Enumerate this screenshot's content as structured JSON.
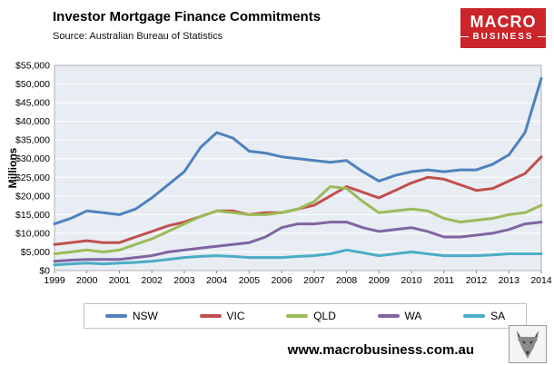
{
  "header": {
    "title": "Investor Mortgage Finance Commitments",
    "source": "Source: Australian Bureau of Statistics",
    "logo": {
      "line1": "MACRO",
      "line2": "BUSINESS",
      "bg_color": "#cb2429"
    }
  },
  "footer": {
    "url": "www.macrobusiness.com.au"
  },
  "chart_data": {
    "type": "line",
    "title": "Investor Mortgage Finance Commitments",
    "xlabel": "",
    "ylabel": "Millions",
    "ylim": [
      0,
      55000
    ],
    "ytick_step": 5000,
    "ytick_prefix": "$",
    "grid": true,
    "plot_bg": "#e8edf3",
    "gridline_color": "#ffffff",
    "legend_position": "bottom",
    "xticks": [
      1999,
      2000,
      2001,
      2002,
      2003,
      2004,
      2005,
      2006,
      2007,
      2008,
      2009,
      2010,
      2011,
      2012,
      2013,
      2014
    ],
    "x": [
      1999,
      1999.5,
      2000,
      2000.5,
      2001,
      2001.5,
      2002,
      2002.5,
      2003,
      2003.5,
      2004,
      2004.5,
      2005,
      2005.5,
      2006,
      2006.5,
      2007,
      2007.5,
      2008,
      2008.5,
      2009,
      2009.5,
      2010,
      2010.5,
      2011,
      2011.5,
      2012,
      2012.5,
      2013,
      2013.5,
      2014
    ],
    "series": [
      {
        "name": "NSW",
        "color": "#4F81BD",
        "values": [
          12500,
          14000,
          16000,
          15500,
          15000,
          16500,
          19500,
          23000,
          26500,
          33000,
          37000,
          35500,
          32000,
          31500,
          30500,
          30000,
          29500,
          29000,
          29500,
          26500,
          24000,
          25500,
          26500,
          27000,
          26500,
          27000,
          27000,
          28500,
          31000,
          37000,
          51500
        ]
      },
      {
        "name": "VIC",
        "color": "#C0504D",
        "values": [
          7000,
          7500,
          8000,
          7500,
          7500,
          9000,
          10500,
          12000,
          13000,
          14500,
          16000,
          16000,
          15000,
          15500,
          15500,
          16500,
          17500,
          20000,
          22500,
          21000,
          19500,
          21500,
          23500,
          25000,
          24500,
          23000,
          21500,
          22000,
          24000,
          26000,
          30500
        ]
      },
      {
        "name": "QLD",
        "color": "#9BBB59",
        "values": [
          4500,
          5000,
          5500,
          5000,
          5500,
          7000,
          8500,
          10500,
          12500,
          14500,
          16000,
          15500,
          15000,
          15000,
          15500,
          16500,
          18500,
          22500,
          22000,
          18500,
          15500,
          16000,
          16500,
          16000,
          14000,
          13000,
          13500,
          14000,
          15000,
          15500,
          17500
        ]
      },
      {
        "name": "WA",
        "color": "#8064A2",
        "values": [
          2500,
          2800,
          3000,
          3000,
          3000,
          3500,
          4000,
          5000,
          5500,
          6000,
          6500,
          7000,
          7500,
          9000,
          11500,
          12500,
          12500,
          13000,
          13000,
          11500,
          10500,
          11000,
          11500,
          10500,
          9000,
          9000,
          9500,
          10000,
          11000,
          12500,
          13000
        ]
      },
      {
        "name": "SA",
        "color": "#4BACC6",
        "values": [
          1500,
          1800,
          2000,
          1800,
          2000,
          2200,
          2500,
          3000,
          3500,
          3800,
          4000,
          3800,
          3500,
          3500,
          3500,
          3800,
          4000,
          4500,
          5500,
          4800,
          4000,
          4500,
          5000,
          4500,
          4000,
          4000,
          4000,
          4200,
          4500,
          4500,
          4500
        ]
      }
    ]
  }
}
